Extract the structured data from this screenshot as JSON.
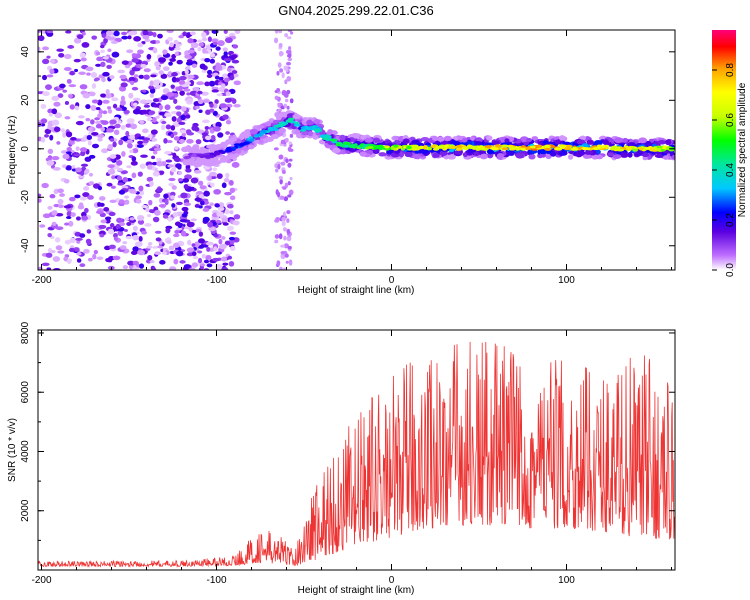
{
  "title": "GN04.2025.299.22.01.C36",
  "chart_data": [
    {
      "type": "heatmap",
      "name": "spectrogram",
      "xlabel": "Height of straight line (km)",
      "ylabel": "Frequency (Hz)",
      "xlim": [
        -202,
        162
      ],
      "ylim": [
        -50,
        49
      ],
      "xticks": [
        -200,
        -100,
        0,
        100
      ],
      "yticks": [
        -40,
        -20,
        0,
        20,
        40
      ],
      "grid": false,
      "colorbar": {
        "label": "Normalized spectral amplitude",
        "range": [
          0.0,
          0.96
        ],
        "ticks": [
          0.0,
          0.2,
          0.4,
          0.6,
          0.8
        ],
        "colormap": [
          "#ffffff",
          "#c070ff",
          "#5a00e0",
          "#0000ff",
          "#00c8ff",
          "#00e6a0",
          "#00ff00",
          "#c8ff00",
          "#ffff00",
          "#ffa000",
          "#ff0000",
          "#ff0078"
        ]
      },
      "noise_region_x": [
        -202,
        -100
      ],
      "vertical_band_x": [
        -66,
        -57
      ],
      "signal_ridge": [
        {
          "x": -118,
          "y": -3,
          "amp": 0.15
        },
        {
          "x": -105,
          "y": -3,
          "amp": 0.18
        },
        {
          "x": -95,
          "y": -1,
          "amp": 0.28
        },
        {
          "x": -85,
          "y": 2,
          "amp": 0.35
        },
        {
          "x": -75,
          "y": 6,
          "amp": 0.42
        },
        {
          "x": -65,
          "y": 9,
          "amp": 0.45
        },
        {
          "x": -58,
          "y": 12,
          "amp": 0.5
        },
        {
          "x": -50,
          "y": 8,
          "amp": 0.42
        },
        {
          "x": -44,
          "y": 9,
          "amp": 0.45
        },
        {
          "x": -38,
          "y": 5,
          "amp": 0.45
        },
        {
          "x": -30,
          "y": 2,
          "amp": 0.55
        },
        {
          "x": -15,
          "y": 1,
          "amp": 0.6
        },
        {
          "x": 0,
          "y": 0.5,
          "amp": 0.7
        },
        {
          "x": 20,
          "y": 0.5,
          "amp": 0.78
        },
        {
          "x": 40,
          "y": 0.5,
          "amp": 0.82
        },
        {
          "x": 60,
          "y": 0.5,
          "amp": 0.84
        },
        {
          "x": 80,
          "y": 0.5,
          "amp": 0.86
        },
        {
          "x": 100,
          "y": 0.5,
          "amp": 0.85
        },
        {
          "x": 120,
          "y": 0.5,
          "amp": 0.88
        },
        {
          "x": 140,
          "y": 0,
          "amp": 0.8
        },
        {
          "x": 162,
          "y": 0,
          "amp": 0.72
        }
      ]
    },
    {
      "type": "line",
      "name": "snr",
      "xlabel": "Height of straight line (km)",
      "ylabel": "SNR (10 * v/v)",
      "xlim": [
        -202,
        162
      ],
      "ylim": [
        0,
        8100
      ],
      "xticks": [
        -200,
        -100,
        0,
        100
      ],
      "yticks": [
        2000,
        4000,
        6000,
        8000
      ],
      "grid": false,
      "color": "#ee3333",
      "envelope": [
        {
          "x": -202,
          "base": 120,
          "peak": 300
        },
        {
          "x": -120,
          "base": 120,
          "peak": 320
        },
        {
          "x": -90,
          "base": 150,
          "peak": 500
        },
        {
          "x": -75,
          "base": 250,
          "peak": 1400
        },
        {
          "x": -65,
          "base": 200,
          "peak": 1300
        },
        {
          "x": -55,
          "base": 150,
          "peak": 700
        },
        {
          "x": -45,
          "base": 300,
          "peak": 3000
        },
        {
          "x": -30,
          "base": 600,
          "peak": 4500
        },
        {
          "x": -15,
          "base": 900,
          "peak": 5600
        },
        {
          "x": 0,
          "base": 1100,
          "peak": 6500
        },
        {
          "x": 20,
          "base": 1400,
          "peak": 7600
        },
        {
          "x": 40,
          "base": 1500,
          "peak": 8000
        },
        {
          "x": 60,
          "base": 1500,
          "peak": 7900
        },
        {
          "x": 80,
          "base": 1400,
          "peak": 7500
        },
        {
          "x": 100,
          "base": 1400,
          "peak": 7000
        },
        {
          "x": 120,
          "base": 1300,
          "peak": 6800
        },
        {
          "x": 140,
          "base": 1100,
          "peak": 7500
        },
        {
          "x": 162,
          "base": 1000,
          "peak": 6400
        }
      ]
    }
  ]
}
